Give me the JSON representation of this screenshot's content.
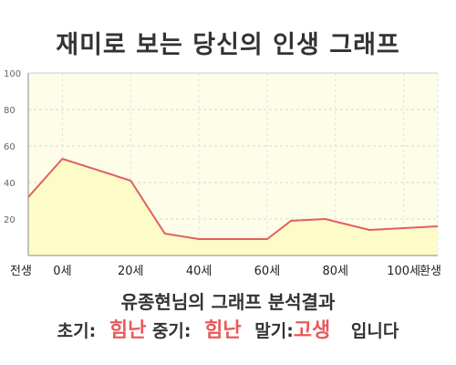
{
  "header": {
    "title": "재미로 보는 당신의 인생 그래프"
  },
  "result": {
    "heading": "유종현님의 그래프 분석결과",
    "early_label": "초기:",
    "early_value": "힘난",
    "middle_label": "중기:",
    "middle_value": "힘난",
    "late_label": "말기:",
    "late_value": "고생",
    "suffix": "입니다"
  },
  "colors": {
    "line": "#e06060",
    "fill": "#fdfbc8",
    "plot_bg": "#fefde8",
    "emphasis": "#e85a5a"
  },
  "chart_data": {
    "type": "area",
    "title": "",
    "xlabel": "",
    "ylabel": "",
    "ylim": [
      0,
      100
    ],
    "yticks": [
      "20",
      "40",
      "60",
      "80",
      "100"
    ],
    "grid": true,
    "x": [
      -10,
      0,
      20,
      30,
      40,
      60,
      67,
      77,
      90,
      100,
      110
    ],
    "x_tick_labels": [
      {
        "x": -10,
        "label": "전생"
      },
      {
        "x": 0,
        "label": "0세"
      },
      {
        "x": 20,
        "label": "20세"
      },
      {
        "x": 40,
        "label": "40세"
      },
      {
        "x": 60,
        "label": "60세"
      },
      {
        "x": 80,
        "label": "80세"
      },
      {
        "x": 100,
        "label": "100세"
      },
      {
        "x": 110,
        "label": "환생"
      }
    ],
    "xlim": [
      -10,
      110
    ],
    "values": [
      32,
      53,
      41,
      12,
      9,
      9,
      19,
      20,
      14,
      15,
      16
    ]
  }
}
